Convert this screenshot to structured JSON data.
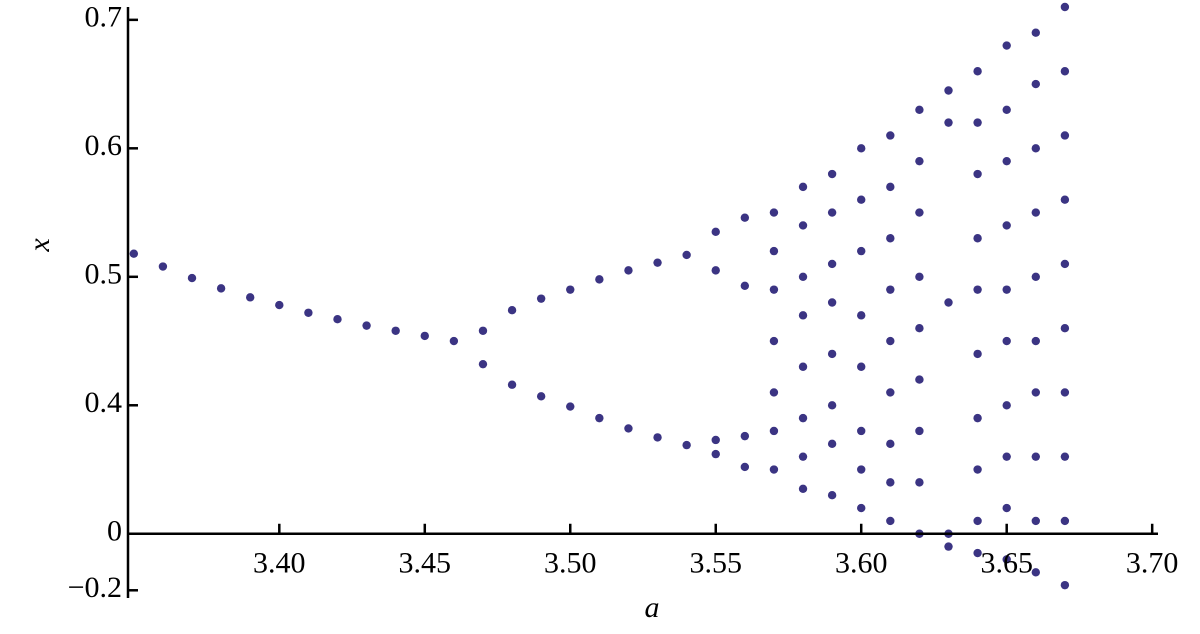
{
  "chart_data": {
    "type": "scatter",
    "xlabel": "a",
    "ylabel": "x",
    "color": "#3b3483",
    "xlim": [
      3.348,
      3.702
    ],
    "ylim": [
      0.25,
      0.71
    ],
    "xaxis_position": 0.3,
    "xticks": [
      {
        "value": 3.4,
        "label": "3.40"
      },
      {
        "value": 3.45,
        "label": "3.45"
      },
      {
        "value": 3.5,
        "label": "3.50"
      },
      {
        "value": 3.55,
        "label": "3.55"
      },
      {
        "value": 3.6,
        "label": "3.60"
      },
      {
        "value": 3.65,
        "label": "3.65"
      },
      {
        "value": 3.7,
        "label": "3.70"
      }
    ],
    "yticks": [
      0.7,
      0.6,
      0.5,
      0.4,
      {
        "value": 0.3,
        "label": "0"
      },
      {
        "value": 0.256,
        "label": "−0.2"
      }
    ],
    "x": [
      3.35,
      3.36,
      3.37,
      3.38,
      3.39,
      3.4,
      3.41,
      3.42,
      3.43,
      3.44,
      3.45,
      3.46,
      3.47,
      3.48,
      3.49,
      3.5,
      3.51,
      3.52,
      3.53,
      3.54,
      3.47,
      3.48,
      3.49,
      3.5,
      3.51,
      3.52,
      3.53,
      3.54,
      3.55,
      3.56,
      3.55,
      3.56,
      3.55,
      3.56,
      3.55,
      3.56,
      3.57,
      3.57,
      3.57,
      3.57,
      3.57,
      3.57,
      3.57,
      3.58,
      3.58,
      3.58,
      3.58,
      3.58,
      3.58,
      3.58,
      3.58,
      3.59,
      3.59,
      3.59,
      3.59,
      3.59,
      3.59,
      3.59,
      3.59,
      3.6,
      3.6,
      3.6,
      3.6,
      3.6,
      3.6,
      3.6,
      3.6,
      3.61,
      3.61,
      3.61,
      3.61,
      3.61,
      3.61,
      3.61,
      3.61,
      3.61,
      3.62,
      3.62,
      3.62,
      3.62,
      3.62,
      3.62,
      3.62,
      3.62,
      3.62,
      3.63,
      3.63,
      3.63,
      3.63,
      3.63,
      3.64,
      3.64,
      3.64,
      3.64,
      3.64,
      3.64,
      3.64,
      3.64,
      3.64,
      3.64,
      3.65,
      3.65,
      3.65,
      3.65,
      3.65,
      3.65,
      3.65,
      3.65,
      3.65,
      3.65,
      3.66,
      3.66,
      3.66,
      3.66,
      3.66,
      3.66,
      3.66,
      3.66,
      3.66,
      3.66,
      3.67,
      3.67,
      3.67,
      3.67,
      3.67,
      3.67,
      3.67,
      3.67,
      3.67,
      3.67
    ],
    "values": [
      0.518,
      0.508,
      0.499,
      0.491,
      0.484,
      0.478,
      0.472,
      0.467,
      0.462,
      0.458,
      0.454,
      0.45,
      0.458,
      0.474,
      0.483,
      0.49,
      0.498,
      0.505,
      0.511,
      0.517,
      0.432,
      0.416,
      0.407,
      0.399,
      0.39,
      0.382,
      0.375,
      0.369,
      0.535,
      0.546,
      0.505,
      0.493,
      0.373,
      0.376,
      0.362,
      0.352,
      0.55,
      0.52,
      0.49,
      0.45,
      0.41,
      0.38,
      0.35,
      0.57,
      0.54,
      0.5,
      0.47,
      0.43,
      0.39,
      0.36,
      0.335,
      0.58,
      0.55,
      0.51,
      0.48,
      0.44,
      0.4,
      0.37,
      0.33,
      0.6,
      0.56,
      0.52,
      0.47,
      0.43,
      0.38,
      0.35,
      0.32,
      0.61,
      0.57,
      0.53,
      0.49,
      0.45,
      0.41,
      0.37,
      0.34,
      0.31,
      0.63,
      0.59,
      0.55,
      0.5,
      0.46,
      0.42,
      0.38,
      0.34,
      0.3,
      0.645,
      0.62,
      0.48,
      0.3,
      0.29,
      0.66,
      0.62,
      0.58,
      0.53,
      0.49,
      0.44,
      0.39,
      0.35,
      0.31,
      0.285,
      0.68,
      0.63,
      0.59,
      0.54,
      0.49,
      0.45,
      0.4,
      0.36,
      0.32,
      0.28,
      0.69,
      0.65,
      0.6,
      0.55,
      0.5,
      0.45,
      0.41,
      0.36,
      0.31,
      0.27,
      0.71,
      0.66,
      0.61,
      0.56,
      0.51,
      0.46,
      0.41,
      0.36,
      0.31,
      0.26
    ]
  }
}
